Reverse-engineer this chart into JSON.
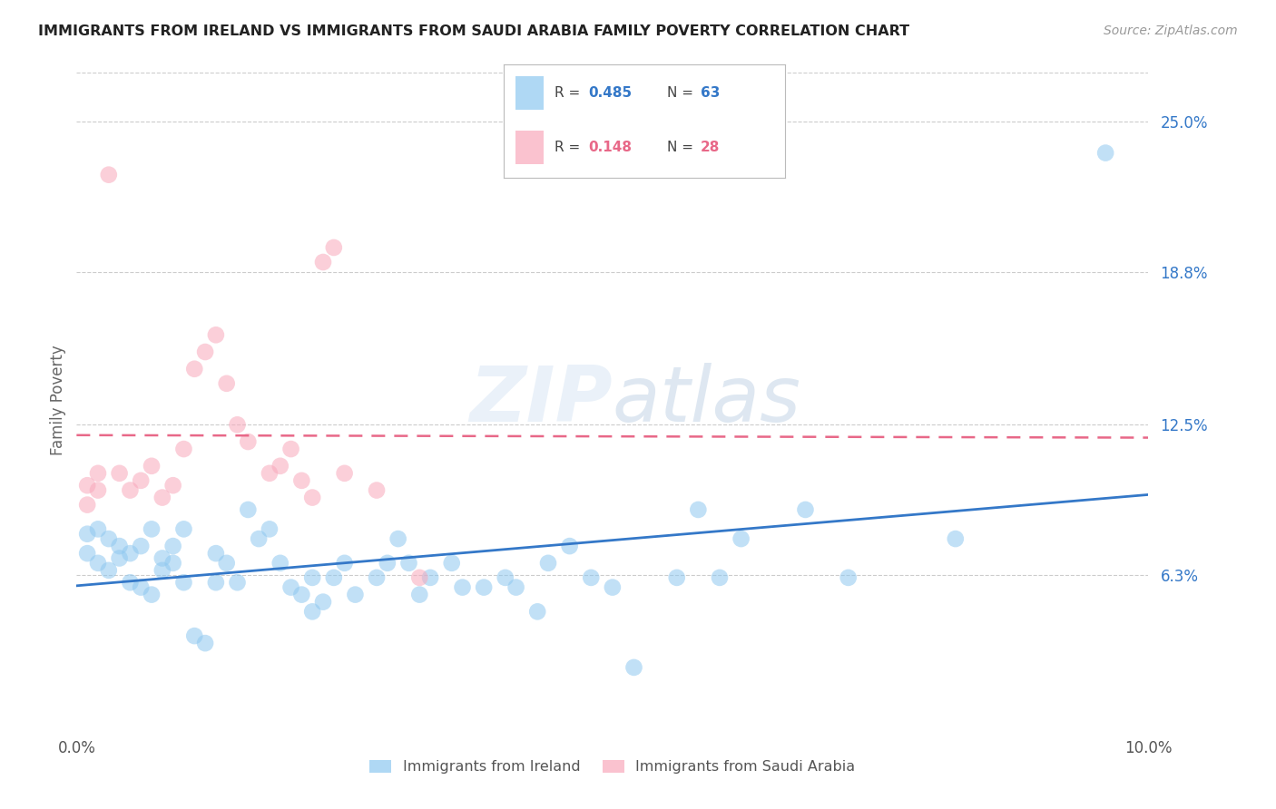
{
  "title": "IMMIGRANTS FROM IRELAND VS IMMIGRANTS FROM SAUDI ARABIA FAMILY POVERTY CORRELATION CHART",
  "source": "Source: ZipAtlas.com",
  "ylabel": "Family Poverty",
  "ytick_values": [
    0.063,
    0.125,
    0.188,
    0.25
  ],
  "ytick_labels": [
    "6.3%",
    "12.5%",
    "18.8%",
    "25.0%"
  ],
  "xlim": [
    0.0,
    0.1
  ],
  "ylim": [
    0.0,
    0.27
  ],
  "legend_ireland_R": "0.485",
  "legend_ireland_N": "63",
  "legend_saudi_R": "0.148",
  "legend_saudi_N": "28",
  "ireland_color": "#8EC8F0",
  "saudi_color": "#F8A8BB",
  "ireland_line_color": "#3478C8",
  "saudi_line_color": "#E86888",
  "watermark": "ZIPatlas",
  "ireland_points_x": [
    0.001,
    0.001,
    0.002,
    0.002,
    0.003,
    0.003,
    0.004,
    0.004,
    0.005,
    0.005,
    0.006,
    0.006,
    0.007,
    0.007,
    0.008,
    0.008,
    0.009,
    0.009,
    0.01,
    0.01,
    0.011,
    0.012,
    0.013,
    0.013,
    0.014,
    0.015,
    0.016,
    0.017,
    0.018,
    0.019,
    0.02,
    0.021,
    0.022,
    0.022,
    0.023,
    0.024,
    0.025,
    0.026,
    0.028,
    0.029,
    0.03,
    0.031,
    0.032,
    0.033,
    0.035,
    0.036,
    0.038,
    0.04,
    0.041,
    0.043,
    0.044,
    0.046,
    0.048,
    0.05,
    0.052,
    0.056,
    0.058,
    0.06,
    0.062,
    0.068,
    0.072,
    0.082,
    0.096
  ],
  "ireland_points_y": [
    0.08,
    0.072,
    0.082,
    0.068,
    0.078,
    0.065,
    0.075,
    0.07,
    0.072,
    0.06,
    0.075,
    0.058,
    0.082,
    0.055,
    0.07,
    0.065,
    0.075,
    0.068,
    0.082,
    0.06,
    0.038,
    0.035,
    0.072,
    0.06,
    0.068,
    0.06,
    0.09,
    0.078,
    0.082,
    0.068,
    0.058,
    0.055,
    0.062,
    0.048,
    0.052,
    0.062,
    0.068,
    0.055,
    0.062,
    0.068,
    0.078,
    0.068,
    0.055,
    0.062,
    0.068,
    0.058,
    0.058,
    0.062,
    0.058,
    0.048,
    0.068,
    0.075,
    0.062,
    0.058,
    0.025,
    0.062,
    0.09,
    0.062,
    0.078,
    0.09,
    0.062,
    0.078,
    0.237
  ],
  "saudi_points_x": [
    0.001,
    0.001,
    0.002,
    0.002,
    0.003,
    0.004,
    0.005,
    0.006,
    0.007,
    0.008,
    0.009,
    0.01,
    0.011,
    0.012,
    0.013,
    0.014,
    0.015,
    0.016,
    0.018,
    0.019,
    0.02,
    0.021,
    0.022,
    0.023,
    0.024,
    0.025,
    0.028,
    0.032
  ],
  "saudi_points_y": [
    0.1,
    0.092,
    0.098,
    0.105,
    0.228,
    0.105,
    0.098,
    0.102,
    0.108,
    0.095,
    0.1,
    0.115,
    0.148,
    0.155,
    0.162,
    0.142,
    0.125,
    0.118,
    0.105,
    0.108,
    0.115,
    0.102,
    0.095,
    0.192,
    0.198,
    0.105,
    0.098,
    0.062
  ]
}
